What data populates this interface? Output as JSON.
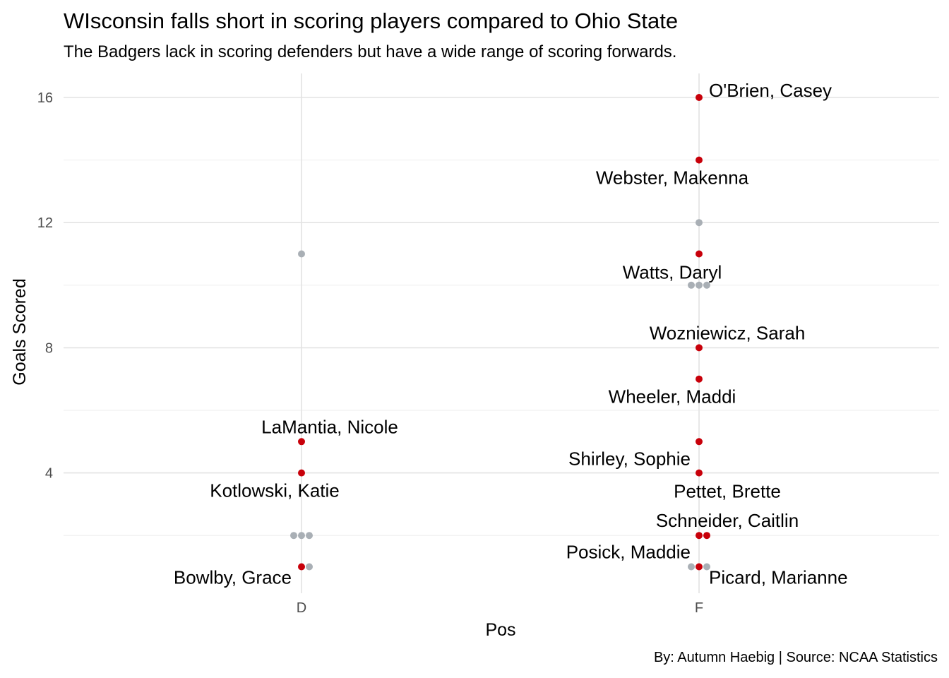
{
  "chart_data": {
    "type": "scatter",
    "title": "WIsconsin falls short in scoring players compared to Ohio State",
    "subtitle": "The Badgers lack in scoring defenders but have a wide range of scoring forwards.",
    "caption": "By: Autumn Haebig  |  Source: NCAA Statistics",
    "xlabel": "Pos",
    "ylabel": "Goals Scored",
    "categories": [
      "D",
      "F"
    ],
    "yticks": [
      4,
      8,
      12,
      16
    ],
    "ylim": [
      0.3,
      16.8
    ],
    "grid": true,
    "colors": {
      "highlight": "#c8000a",
      "other": "#a9afb5"
    },
    "series": [
      {
        "points": [
          {
            "pos": "D",
            "y": 11,
            "dx": 0
          },
          {
            "pos": "D",
            "y": 2,
            "dx": -1
          },
          {
            "pos": "D",
            "y": 2,
            "dx": 0
          },
          {
            "pos": "D",
            "y": 2,
            "dx": 1
          },
          {
            "pos": "D",
            "y": 1,
            "dx": 1
          },
          {
            "pos": "F",
            "y": 12,
            "dx": 0
          },
          {
            "pos": "F",
            "y": 10,
            "dx": -1
          },
          {
            "pos": "F",
            "y": 10,
            "dx": 0
          },
          {
            "pos": "F",
            "y": 10,
            "dx": 1
          },
          {
            "pos": "F",
            "y": 1,
            "dx": -1
          },
          {
            "pos": "F",
            "y": 1,
            "dx": 1
          }
        ]
      },
      {
        "points": [
          {
            "pos": "F",
            "y": 16,
            "dx": 0
          },
          {
            "pos": "F",
            "y": 14,
            "dx": 0
          },
          {
            "pos": "F",
            "y": 11,
            "dx": 0
          },
          {
            "pos": "F",
            "y": 8,
            "dx": 0
          },
          {
            "pos": "F",
            "y": 7,
            "dx": 0
          },
          {
            "pos": "F",
            "y": 5,
            "dx": 0
          },
          {
            "pos": "F",
            "y": 4,
            "dx": 0
          },
          {
            "pos": "F",
            "y": 2,
            "dx": 0
          },
          {
            "pos": "F",
            "y": 2,
            "dx": 1
          },
          {
            "pos": "F",
            "y": 1,
            "dx": 0
          },
          {
            "pos": "D",
            "y": 5,
            "dx": 0
          },
          {
            "pos": "D",
            "y": 4,
            "dx": 0
          },
          {
            "pos": "D",
            "y": 1,
            "dx": 0
          }
        ]
      }
    ],
    "labels": [
      {
        "text": "O'Brien, Casey",
        "pos": "F",
        "y": 16
      },
      {
        "text": "Webster, Makenna",
        "pos": "F",
        "y": 14
      },
      {
        "text": "Watts, Daryl",
        "pos": "F",
        "y": 11
      },
      {
        "text": "Wozniewicz, Sarah",
        "pos": "F",
        "y": 8
      },
      {
        "text": "Wheeler, Maddi",
        "pos": "F",
        "y": 7
      },
      {
        "text": "Shirley, Sophie",
        "pos": "F",
        "y": 5
      },
      {
        "text": "Pettet, Brette",
        "pos": "F",
        "y": 4
      },
      {
        "text": "Schneider, Caitlin",
        "pos": "F",
        "y": 2
      },
      {
        "text": "Posick, Maddie",
        "pos": "F",
        "y": 1
      },
      {
        "text": "Picard, Marianne",
        "pos": "F",
        "y": 1
      },
      {
        "text": "LaMantia, Nicole",
        "pos": "D",
        "y": 5
      },
      {
        "text": "Kotlowski, Katie",
        "pos": "D",
        "y": 4
      },
      {
        "text": "Bowlby, Grace",
        "pos": "D",
        "y": 1
      }
    ]
  }
}
